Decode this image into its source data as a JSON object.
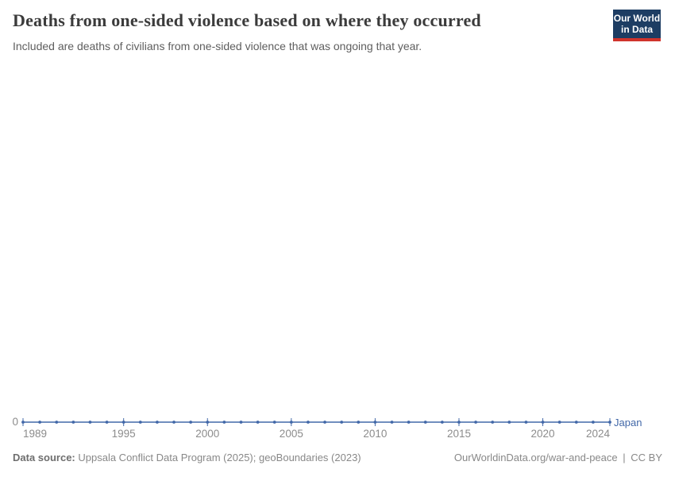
{
  "header": {
    "title": "Deaths from one-sided violence based on where they occurred",
    "subtitle": "Included are deaths of civilians from one-sided violence that was ongoing that year.",
    "logo": {
      "line1": "Our World",
      "line2": "in Data"
    }
  },
  "chart_data": {
    "type": "line",
    "title": "Deaths from one-sided violence based on where they occurred",
    "subtitle": "Included are deaths of civilians from one-sided violence that was ongoing that year.",
    "x": [
      1989,
      1990,
      1991,
      1992,
      1993,
      1994,
      1995,
      1996,
      1997,
      1998,
      1999,
      2000,
      2001,
      2002,
      2003,
      2004,
      2005,
      2006,
      2007,
      2008,
      2009,
      2010,
      2011,
      2012,
      2013,
      2014,
      2015,
      2016,
      2017,
      2018,
      2019,
      2020,
      2021,
      2022,
      2023,
      2024
    ],
    "series": [
      {
        "name": "Japan",
        "color": "#4268a8",
        "values": [
          0,
          0,
          0,
          0,
          0,
          0,
          0,
          0,
          0,
          0,
          0,
          0,
          0,
          0,
          0,
          0,
          0,
          0,
          0,
          0,
          0,
          0,
          0,
          0,
          0,
          0,
          0,
          0,
          0,
          0,
          0,
          0,
          0,
          0,
          0,
          0
        ]
      }
    ],
    "x_ticks": [
      1989,
      1995,
      2000,
      2005,
      2010,
      2015,
      2020,
      2024
    ],
    "y_ticks": [
      0
    ],
    "ylim": [
      0,
      1
    ],
    "xlabel": "",
    "ylabel": "",
    "grid": false,
    "legend_position": "end-of-line"
  },
  "footer": {
    "source_label": "Data source:",
    "source_text": "Uppsala Conflict Data Program (2025); geoBoundaries (2023)",
    "link_text": "OurWorldinData.org/war-and-peace",
    "separator": "|",
    "license_text": "CC BY"
  },
  "colors": {
    "line": "#4268a8",
    "logo_background": "#1d3d63",
    "logo_stripe": "#d0342c",
    "axis_text": "#8c8c8c",
    "title_text": "#3b3b3b"
  }
}
